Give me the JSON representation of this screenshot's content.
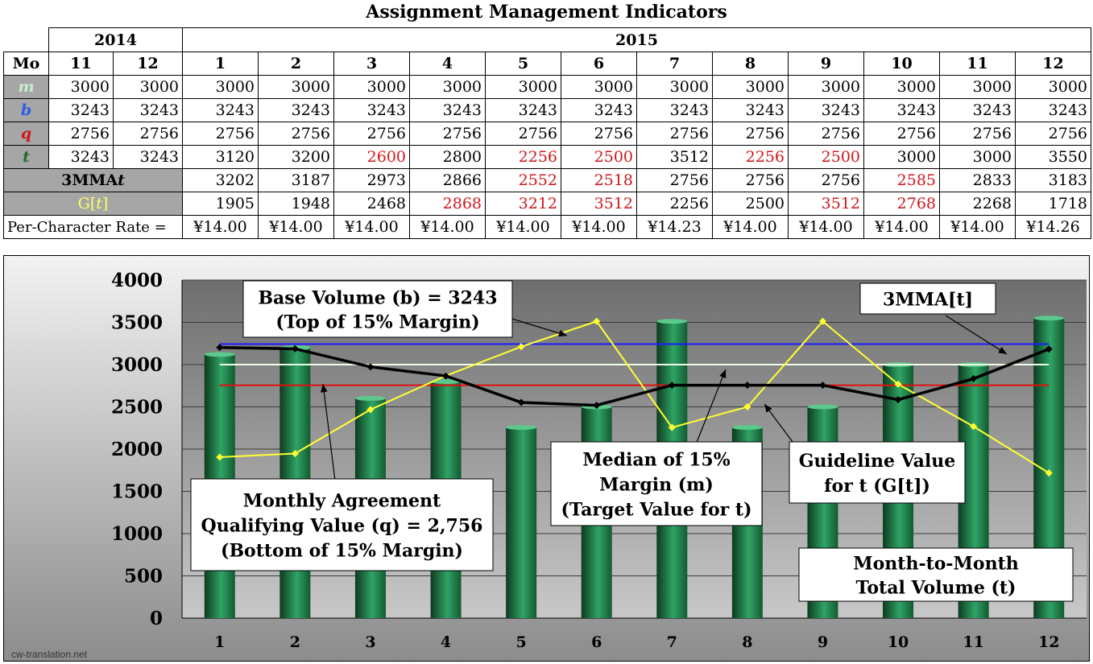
{
  "title": "Assignment Management Indicators",
  "table": {
    "year_left": "2014",
    "year_right": "2015",
    "mo_label": "Mo",
    "months": [
      "11",
      "12",
      "1",
      "2",
      "3",
      "4",
      "5",
      "6",
      "7",
      "8",
      "9",
      "10",
      "11",
      "12"
    ],
    "rows": [
      {
        "label": "m",
        "color": "#c6efce",
        "values": [
          3000,
          3000,
          3000,
          3000,
          3000,
          3000,
          3000,
          3000,
          3000,
          3000,
          3000,
          3000,
          3000,
          3000
        ],
        "red": []
      },
      {
        "label": "b",
        "color": "#2f5be8",
        "values": [
          3243,
          3243,
          3243,
          3243,
          3243,
          3243,
          3243,
          3243,
          3243,
          3243,
          3243,
          3243,
          3243,
          3243
        ],
        "red": []
      },
      {
        "label": "q",
        "color": "#d0161c",
        "values": [
          2756,
          2756,
          2756,
          2756,
          2756,
          2756,
          2756,
          2756,
          2756,
          2756,
          2756,
          2756,
          2756,
          2756
        ],
        "red": []
      },
      {
        "label": "t",
        "color": "#1e6b2e",
        "values": [
          3243,
          3243,
          3120,
          3200,
          2600,
          2800,
          2256,
          2500,
          3512,
          2256,
          2500,
          3000,
          3000,
          3550
        ],
        "red": [
          4,
          6,
          7,
          9,
          10
        ]
      }
    ],
    "mma_label": "3MMA",
    "mma_label_t": "t",
    "mma_values": [
      3202,
      3187,
      2973,
      2866,
      2552,
      2518,
      2756,
      2756,
      2756,
      2585,
      2833,
      3183
    ],
    "mma_red": [
      4,
      5,
      9
    ],
    "g_label": "G[",
    "g_label_t": "t",
    "g_label_end": "]",
    "g_color": "#ffff66",
    "g_values": [
      1905,
      1948,
      2468,
      2868,
      3212,
      3512,
      2256,
      2500,
      3512,
      2768,
      2268,
      1718
    ],
    "g_red": [
      3,
      4,
      5,
      8,
      9
    ],
    "rate_label": "Per-Character Rate =",
    "rates": [
      "¥14.00",
      "¥14.00",
      "¥14.00",
      "¥14.00",
      "¥14.00",
      "¥14.00",
      "¥14.23",
      "¥14.00",
      "¥14.00",
      "¥14.00",
      "¥14.00",
      "¥14.26"
    ]
  },
  "chart_data": {
    "type": "bar",
    "categories": [
      "1",
      "2",
      "3",
      "4",
      "5",
      "6",
      "7",
      "8",
      "9",
      "10",
      "11",
      "12"
    ],
    "ylim": [
      0,
      4000
    ],
    "yticks": [
      "0",
      "500",
      "1000",
      "1500",
      "2000",
      "2500",
      "3000",
      "3500",
      "4000"
    ],
    "bars_t": [
      3120,
      3200,
      2600,
      2800,
      2256,
      2500,
      3512,
      2256,
      2500,
      3000,
      3000,
      3550
    ],
    "line_3mma": [
      3202,
      3187,
      2973,
      2866,
      2552,
      2518,
      2756,
      2756,
      2756,
      2585,
      2833,
      3183
    ],
    "line_g": [
      1905,
      1948,
      2468,
      2868,
      3212,
      3512,
      2256,
      2500,
      3512,
      2768,
      2268,
      1718
    ],
    "b_value": 3243,
    "m_value": 3000,
    "q_value": 2756,
    "colors": {
      "bar": "#1f8a4c",
      "mma": "#000000",
      "g": "#ffff33",
      "b": "#1a1aff",
      "m": "#f0ffe8",
      "q": "#e01010"
    },
    "annotations": {
      "base": [
        "Base Volume (b) = 3243",
        "(Top of 15% Margin)"
      ],
      "mma": "3MMA[t]",
      "monthly": [
        "Monthly Agreement",
        "Qualifying Value (q) = 2,756",
        "(Bottom of 15% Margin)"
      ],
      "median": [
        "Median of 15%",
        "Margin (m)",
        "(Target Value for t)"
      ],
      "guideline": [
        "Guideline Value",
        "for t (G[t])"
      ],
      "total": [
        "Month-to-Month",
        "Total Volume (t)"
      ]
    }
  },
  "watermark": "cw-translation.net"
}
